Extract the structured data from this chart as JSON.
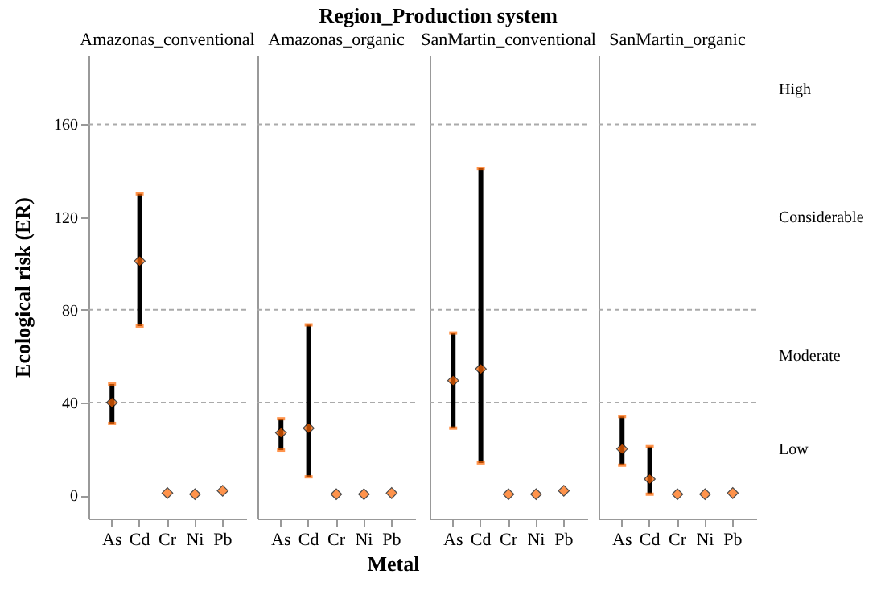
{
  "chart_data": [
    {
      "type": "scatter",
      "title": "Amazonas_conventional",
      "ylabel": "Ecological risk (ER)",
      "annotations": [
        "Region_Production system"
      ],
      "categories": [
        "As",
        "Cd",
        "Cr",
        "Ni",
        "Pb"
      ],
      "color": "#ff6600",
      "marker": "diamond",
      "values": [
        40,
        101,
        1,
        0.5,
        2
      ],
      "errors": [
        [
          31,
          48
        ],
        [
          73,
          130
        ],
        null,
        null,
        null
      ],
      "ylim": [
        -10,
        190
      ],
      "yticks": [
        0,
        40,
        80,
        120,
        160
      ],
      "ref_lines": [
        {
          "axis": "y",
          "value": 40,
          "line_style": "dashed"
        },
        {
          "axis": "y",
          "value": 80,
          "line_style": "dashed"
        },
        {
          "axis": "y",
          "value": 160,
          "line_style": "dashed"
        }
      ]
    },
    {
      "type": "scatter",
      "title": "Amazonas_organic",
      "xlabel": "Metal",
      "categories": [
        "As",
        "Cd",
        "Cr",
        "Ni",
        "Pb"
      ],
      "color": "#ff6600",
      "marker": "diamond",
      "values": [
        27,
        29,
        0.5,
        0.5,
        1
      ],
      "errors": [
        [
          19.5,
          33
        ],
        [
          8,
          73.5
        ],
        null,
        null,
        null
      ],
      "ylim": [
        -10,
        190
      ],
      "yticks": [
        0,
        40,
        80,
        120,
        160
      ],
      "tick_labels": "x",
      "ref_lines": [
        {
          "axis": "y",
          "value": 40,
          "line_style": "dashed"
        },
        {
          "axis": "y",
          "value": 80,
          "line_style": "dashed"
        },
        {
          "axis": "y",
          "value": 160,
          "line_style": "dashed"
        }
      ]
    },
    {
      "type": "scatter",
      "title": "SanMartin_conventional",
      "categories": [
        "As",
        "Cd",
        "Cr",
        "Ni",
        "Pb"
      ],
      "color": "#ff6600",
      "marker": "diamond",
      "values": [
        49.5,
        54.5,
        0.5,
        0.5,
        2
      ],
      "errors": [
        [
          29,
          70
        ],
        [
          14,
          141
        ],
        null,
        null,
        null
      ],
      "ylim": [
        -10,
        190
      ],
      "yticks": [
        0,
        40,
        80,
        120,
        160
      ],
      "tick_labels": "x",
      "ref_lines": [
        {
          "axis": "y",
          "value": 40,
          "line_style": "dashed"
        },
        {
          "axis": "y",
          "value": 80,
          "line_style": "dashed"
        },
        {
          "axis": "y",
          "value": 160,
          "line_style": "dashed"
        }
      ]
    },
    {
      "type": "scatter",
      "title": "SanMartin_organic",
      "categories": [
        "As",
        "Cd",
        "Cr",
        "Ni",
        "Pb"
      ],
      "color": "#ff6600",
      "marker": "diamond",
      "values": [
        20,
        7,
        0.5,
        0.5,
        1
      ],
      "errors": [
        [
          13,
          34
        ],
        [
          0.5,
          21
        ],
        null,
        null,
        null
      ],
      "ylim": [
        -10,
        190
      ],
      "yticks": [
        0,
        40,
        80,
        120,
        160
      ],
      "tick_labels": "x",
      "ref_lines": [
        {
          "axis": "y",
          "value": 40,
          "line_style": "dashed"
        },
        {
          "axis": "y",
          "value": 80,
          "line_style": "dashed"
        },
        {
          "axis": "y",
          "value": 160,
          "line_style": "dashed"
        }
      ],
      "annotations": [
        "High",
        "Considerable",
        "Moderate",
        "Low"
      ]
    }
  ]
}
